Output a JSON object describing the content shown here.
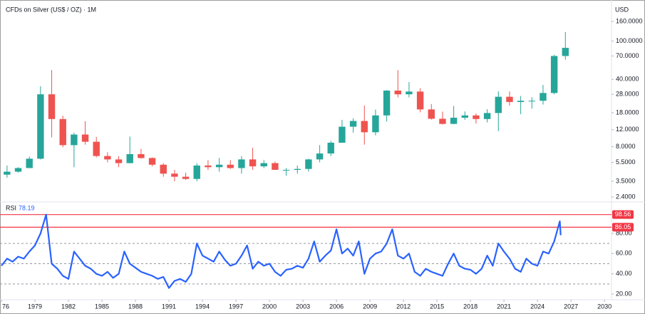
{
  "chart_data": [
    {
      "type": "candlestick",
      "title": "CFDs on Silver (US$ / OZ) · 1M",
      "unit_label": "USD",
      "x": [
        1976,
        1977,
        1978,
        1979,
        1980,
        1981,
        1982,
        1983,
        1984,
        1985,
        1986,
        1987,
        1988,
        1989,
        1990,
        1991,
        1992,
        1993,
        1994,
        1995,
        1996,
        1997,
        1998,
        1999,
        2000,
        2001,
        2002,
        2003,
        2004,
        2005,
        2006,
        2007,
        2008,
        2009,
        2010,
        2011,
        2012,
        2013,
        2014,
        2015,
        2016,
        2017,
        2018,
        2019,
        2020,
        2021,
        2022,
        2023,
        2024,
        2025,
        2026
      ],
      "open": [
        4.1,
        4.4,
        4.8,
        6.0,
        28,
        15.5,
        8.3,
        10.7,
        9.0,
        6.4,
        5.9,
        5.4,
        6.7,
        6.1,
        5.2,
        4.2,
        3.9,
        3.7,
        5.1,
        4.9,
        5.2,
        4.8,
        5.9,
        5.0,
        5.4,
        4.6,
        4.6,
        4.7,
        5.9,
        6.8,
        8.8,
        12.9,
        14.8,
        11.3,
        16.9,
        30.6,
        28,
        29.9,
        19.5,
        15.6,
        13.8,
        16,
        16.9,
        15.5,
        17.9,
        26.4,
        23.3,
        24,
        24,
        28.9,
        70
      ],
      "high": [
        5.1,
        4.9,
        6.3,
        34,
        50,
        16.8,
        11.2,
        14.7,
        10.1,
        7.0,
        6.4,
        10.2,
        7.6,
        6.2,
        5.4,
        4.6,
        4.3,
        5.4,
        5.8,
        6.1,
        5.8,
        6.4,
        7.8,
        5.8,
        5.6,
        4.8,
        5.1,
        6.0,
        8.3,
        9.2,
        15.2,
        15.8,
        21.4,
        19.4,
        31,
        50,
        37.5,
        32.4,
        22.2,
        18.5,
        21.2,
        18.6,
        17.7,
        19.6,
        30,
        30,
        26.9,
        26.1,
        35,
        72,
        124
      ],
      "low": [
        3.8,
        4.3,
        4.8,
        5.9,
        10,
        7.9,
        4.9,
        8.4,
        6.2,
        5.5,
        4.9,
        5.4,
        6.0,
        5.0,
        3.9,
        3.5,
        3.6,
        3.5,
        4.6,
        4.4,
        4.7,
        4.2,
        4.6,
        4.8,
        4.6,
        4.0,
        4.2,
        4.4,
        5.5,
        6.4,
        8.8,
        11.2,
        8.4,
        10.5,
        14.6,
        26,
        26,
        18.2,
        15.3,
        13.6,
        13.7,
        15.2,
        13.9,
        14.3,
        11.6,
        21.4,
        17.4,
        19.9,
        21.9,
        28,
        64
      ],
      "close": [
        4.4,
        4.8,
        6.0,
        28,
        15.5,
        8.3,
        10.7,
        9.0,
        6.4,
        5.9,
        5.4,
        6.7,
        6.1,
        5.2,
        4.2,
        3.9,
        3.7,
        5.1,
        4.9,
        5.2,
        4.8,
        5.9,
        5.0,
        5.4,
        4.6,
        4.6,
        4.7,
        5.9,
        6.8,
        8.8,
        12.9,
        14.8,
        11.3,
        16.9,
        30.6,
        28,
        29.9,
        19.5,
        15.6,
        13.8,
        16,
        16.9,
        15.5,
        17.9,
        26.4,
        23.3,
        24,
        24,
        28.9,
        70,
        85
      ],
      "up_color": "#26a69a",
      "down_color": "#ef5350",
      "log_scale": true,
      "xlim": [
        1975.87,
        2030.63
      ],
      "ylim": [
        2.17,
        233
      ],
      "xticks": [
        {
          "value": 1976,
          "label": "76"
        },
        1979,
        1982,
        1985,
        1988,
        1991,
        1994,
        1997,
        2000,
        2003,
        2006,
        2009,
        2012,
        2015,
        2018,
        2021,
        2024,
        2027,
        2030
      ],
      "yticks": [
        {
          "value": 160,
          "label": "160.0000"
        },
        {
          "value": 100,
          "label": "100.0000"
        },
        {
          "value": 70,
          "label": "70.0000"
        },
        {
          "value": 40,
          "label": "40.0000"
        },
        {
          "value": 28,
          "label": "28.0000"
        },
        {
          "value": 18,
          "label": "18.0000"
        },
        {
          "value": 12,
          "label": "12.0000"
        },
        {
          "value": 8,
          "label": "8.0000"
        },
        {
          "value": 5.5,
          "label": "5.5000"
        },
        {
          "value": 3.5,
          "label": "3.5000"
        },
        {
          "value": 2.4,
          "label": "2.4000"
        }
      ]
    },
    {
      "type": "line",
      "title": "RSI",
      "x": [
        1976,
        1976.5,
        1977,
        1977.5,
        1978,
        1978.5,
        1979,
        1979.5,
        1980,
        1980.5,
        1981,
        1981.5,
        1982,
        1982.5,
        1983,
        1983.5,
        1984,
        1984.5,
        1985,
        1985.5,
        1986,
        1986.5,
        1987,
        1987.5,
        1988,
        1988.5,
        1989,
        1989.5,
        1990,
        1990.5,
        1991,
        1991.5,
        1992,
        1992.5,
        1993,
        1993.5,
        1994,
        1994.5,
        1995,
        1995.5,
        1996,
        1996.5,
        1997,
        1997.5,
        1998,
        1998.5,
        1999,
        1999.5,
        2000,
        2000.5,
        2001,
        2001.5,
        2002,
        2002.5,
        2003,
        2003.5,
        2004,
        2004.5,
        2005,
        2005.5,
        2006,
        2006.5,
        2007,
        2007.5,
        2008,
        2008.5,
        2009,
        2009.5,
        2010,
        2010.5,
        2011,
        2011.5,
        2012,
        2012.5,
        2013,
        2013.5,
        2014,
        2014.5,
        2015,
        2015.5,
        2016,
        2016.5,
        2017,
        2017.5,
        2018,
        2018.5,
        2019,
        2019.5,
        2020,
        2020.5,
        2021,
        2021.5,
        2022,
        2022.5,
        2023,
        2023.5,
        2024,
        2024.5,
        2025,
        2025.5,
        2026,
        2026.08
      ],
      "series": [
        {
          "name": "RSI",
          "color": "#2962ff",
          "values": [
            48,
            55,
            52,
            57,
            55,
            62,
            68,
            80,
            98.56,
            50,
            45,
            38,
            35,
            62,
            55,
            48,
            45,
            40,
            38,
            42,
            36,
            40,
            62,
            50,
            46,
            42,
            40,
            38,
            35,
            37,
            26,
            33,
            35,
            32,
            40,
            70,
            58,
            55,
            52,
            62,
            54,
            48,
            50,
            58,
            68,
            45,
            52,
            48,
            50,
            42,
            38,
            44,
            45,
            48,
            46,
            55,
            72,
            52,
            58,
            63,
            84,
            60,
            65,
            58,
            72,
            40,
            55,
            60,
            62,
            70,
            84,
            58,
            55,
            60,
            42,
            38,
            45,
            42,
            40,
            38,
            50,
            60,
            48,
            45,
            44,
            40,
            45,
            58,
            48,
            70,
            62,
            55,
            45,
            42,
            55,
            50,
            48,
            62,
            60,
            72,
            92,
            78.19
          ]
        }
      ],
      "levels": [
        {
          "value": 98.56,
          "color": "#f23645"
        },
        {
          "value": 86.05,
          "color": "#f23645"
        }
      ],
      "dashed_levels": [
        70,
        50,
        30
      ],
      "xlim": [
        1975.87,
        2030.63
      ],
      "ylim": [
        14.4,
        107.5
      ],
      "yticks": [
        {
          "value": 80,
          "label": "80.00"
        },
        {
          "value": 60,
          "label": "60.00"
        },
        {
          "value": 40,
          "label": "40.00"
        },
        {
          "value": 20,
          "label": "20.00"
        }
      ]
    }
  ]
}
